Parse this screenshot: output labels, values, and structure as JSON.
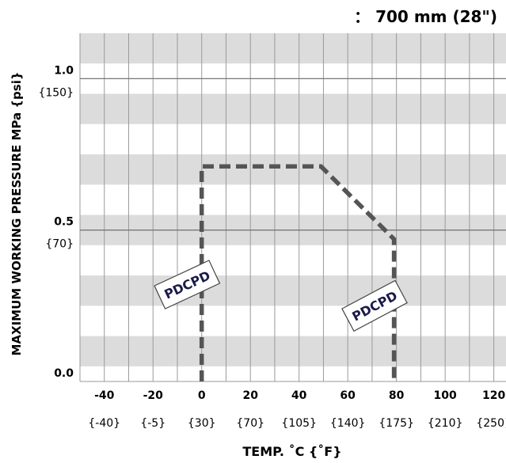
{
  "title": "： 700 mm (28\")",
  "chart_data": {
    "type": "line",
    "ylabel": "MAXIMUM WORKING PRESSURE  MPa {psi}",
    "xlabel": "TEMP. ˚C {˚F}",
    "xlim": [
      -50,
      125
    ],
    "ylim": [
      0,
      1.15
    ],
    "x_ticks": [
      {
        "value": -40,
        "label": "-40",
        "sub": "{-40}"
      },
      {
        "value": -20,
        "label": "-20",
        "sub": "{-5}"
      },
      {
        "value": 0,
        "label": "0",
        "sub": "{30}"
      },
      {
        "value": 20,
        "label": "20",
        "sub": "{70}"
      },
      {
        "value": 40,
        "label": "40",
        "sub": "{105}"
      },
      {
        "value": 60,
        "label": "60",
        "sub": "{140}"
      },
      {
        "value": 80,
        "label": "80",
        "sub": "{175}"
      },
      {
        "value": 100,
        "label": "100",
        "sub": "{210}"
      },
      {
        "value": 120,
        "label": "120",
        "sub": "{250}"
      }
    ],
    "y_ticks": [
      {
        "value": 1.0,
        "label": "1.0",
        "sub": "{150}"
      },
      {
        "value": 0.5,
        "label": "0.5",
        "sub": "{70}"
      },
      {
        "value": 0.0,
        "label": "0.0",
        "sub": ""
      }
    ],
    "grid": true,
    "series": [
      {
        "style": "dashed",
        "color": "#555555",
        "points": [
          [
            0,
            0.0
          ],
          [
            0,
            0.71
          ],
          [
            49,
            0.71
          ],
          [
            79,
            0.47
          ],
          [
            79,
            0.0
          ]
        ]
      }
    ],
    "annotations": [
      {
        "text": "PDCPD",
        "x": -6,
        "y": 0.32,
        "rotation": -25
      },
      {
        "text": "PDCPD",
        "x": 71,
        "y": 0.25,
        "rotation": -28
      }
    ]
  }
}
